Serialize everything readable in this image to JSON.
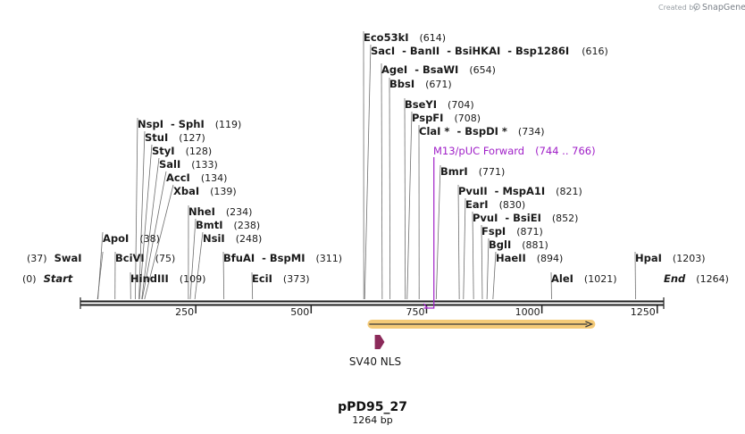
{
  "credit": {
    "created_by": "Created by",
    "brand": "SnapGene"
  },
  "plasmid": {
    "name": "pPD95_27",
    "length_label": "1264 bp",
    "length": 1264
  },
  "sites": [
    {
      "name": "Eco53kI",
      "pos": "(614)",
      "bp": 614
    },
    {
      "name": "SacI",
      "pos": "",
      "bp": 616
    },
    {
      "name": "BanII",
      "pos": "",
      "bp": 616
    },
    {
      "name": "BsiHKAI",
      "pos": "",
      "bp": 616
    },
    {
      "name": "Bsp1286I",
      "pos": "(616)",
      "bp": 616
    },
    {
      "name": "AgeI",
      "pos": "",
      "bp": 654
    },
    {
      "name": "BsaWI",
      "pos": "(654)",
      "bp": 654
    },
    {
      "name": "BbsI",
      "pos": "(671)",
      "bp": 671
    },
    {
      "name": "BseYI",
      "pos": "(704)",
      "bp": 704
    },
    {
      "name": "PspFI",
      "pos": "(708)",
      "bp": 708
    },
    {
      "name": "ClaI *",
      "pos": "",
      "bp": 734
    },
    {
      "name": "BspDI *",
      "pos": "(734)",
      "bp": 734
    },
    {
      "name": "BmrI",
      "pos": "(771)",
      "bp": 771
    },
    {
      "name": "PvuII",
      "pos": "",
      "bp": 821
    },
    {
      "name": "MspA1I",
      "pos": "(821)",
      "bp": 821
    },
    {
      "name": "EarI",
      "pos": "(830)",
      "bp": 830
    },
    {
      "name": "PvuI",
      "pos": "",
      "bp": 852
    },
    {
      "name": "BsiEI",
      "pos": "(852)",
      "bp": 852
    },
    {
      "name": "FspI",
      "pos": "(871)",
      "bp": 871
    },
    {
      "name": "BglI",
      "pos": "(881)",
      "bp": 881
    },
    {
      "name": "HaeII",
      "pos": "(894)",
      "bp": 894
    },
    {
      "name": "AleI",
      "pos": "(1021)",
      "bp": 1021
    },
    {
      "name": "HpaI",
      "pos": "(1203)",
      "bp": 1203
    },
    {
      "name": "NspI",
      "pos": "",
      "bp": 119
    },
    {
      "name": "SphI",
      "pos": "(119)",
      "bp": 119
    },
    {
      "name": "StuI",
      "pos": "(127)",
      "bp": 127
    },
    {
      "name": "StyI",
      "pos": "(128)",
      "bp": 128
    },
    {
      "name": "SalI",
      "pos": "(133)",
      "bp": 133
    },
    {
      "name": "AccI",
      "pos": "(134)",
      "bp": 134
    },
    {
      "name": "XbaI",
      "pos": "(139)",
      "bp": 139
    },
    {
      "name": "NheI",
      "pos": "(234)",
      "bp": 234
    },
    {
      "name": "BmtI",
      "pos": "(238)",
      "bp": 238
    },
    {
      "name": "NsiI",
      "pos": "(248)",
      "bp": 248
    },
    {
      "name": "ApoI",
      "pos": "(38)",
      "bp": 38
    },
    {
      "name": "BciVI",
      "pos": "(75)",
      "bp": 75
    },
    {
      "name": "HindIII",
      "pos": "(109)",
      "bp": 109
    },
    {
      "name": "BfuAI",
      "pos": "",
      "bp": 311
    },
    {
      "name": "BspMI",
      "pos": "(311)",
      "bp": 311
    },
    {
      "name": "EciI",
      "pos": "(373)",
      "bp": 373
    },
    {
      "name": "SwaI",
      "pos": "(37)",
      "bp": 37
    }
  ],
  "ends": {
    "start": "Start",
    "start_pos": "(0)",
    "end": "End",
    "end_pos": "(1264)"
  },
  "primer": {
    "name": "M13/pUC Forward",
    "range": "(744 .. 766)",
    "start": 744,
    "end": 766
  },
  "axis": {
    "ticks": [
      {
        "label": "250",
        "bp": 250
      },
      {
        "label": "500",
        "bp": 500
      },
      {
        "label": "750",
        "bp": 750
      },
      {
        "label": "1000",
        "bp": 1000
      },
      {
        "label": "1250",
        "bp": 1250
      }
    ]
  },
  "features": {
    "orf": {
      "start": 626,
      "end": 1108,
      "color": "#f0b84a"
    },
    "nls": {
      "label": "SV40 NLS",
      "start": 638,
      "end": 659,
      "color": "#8b2a5a"
    }
  },
  "colors": {
    "primer": "#a020c8",
    "backbone": "#222222"
  }
}
